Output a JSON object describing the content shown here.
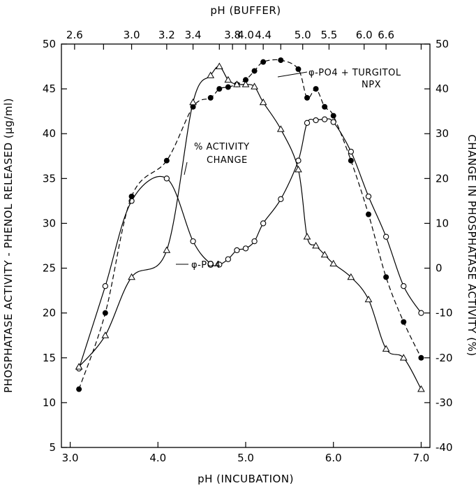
{
  "chart_data": {
    "type": "line",
    "xlabel": "pH (INCUBATION)",
    "x2label": "pH (BUFFER)",
    "ylabel": "PHOSPHATASE ACTIVITY - PHENOL RELEASED (μg/ml)",
    "y2label": "CHANGE IN PHOSPHATASE ACTIVITY (%)",
    "xlim": [
      2.9,
      7.1
    ],
    "ylim": [
      5,
      50
    ],
    "y2lim": [
      -40,
      50
    ],
    "x_ticks": [
      3.0,
      4.0,
      5.0,
      6.0,
      7.0
    ],
    "x_tick_labels": [
      "3.0",
      "4.0",
      "5.0",
      "6.0",
      "7.0"
    ],
    "y_ticks": [
      5,
      10,
      15,
      20,
      25,
      30,
      35,
      40,
      45,
      50
    ],
    "y_tick_labels": [
      "5",
      "10",
      "15",
      "20",
      "25",
      "30",
      "35",
      "40",
      "45",
      "50"
    ],
    "y2_ticks": [
      -40,
      -30,
      -20,
      -10,
      0,
      10,
      20,
      30,
      40,
      50
    ],
    "y2_tick_labels": [
      "-40",
      "-30",
      "-20",
      "-10",
      "0",
      "10",
      "20",
      "30",
      "40",
      "50"
    ],
    "x2_ticks": [
      3.05,
      3.38,
      3.7,
      4.1,
      4.4,
      4.7,
      4.85,
      5.0,
      5.2,
      5.4,
      5.65,
      5.95,
      6.35,
      6.6,
      7.0
    ],
    "x2_tick_labels": [
      {
        "x": 3.05,
        "label": "2.6"
      },
      {
        "x": 3.7,
        "label": "3.0"
      },
      {
        "x": 4.1,
        "label": "3.2"
      },
      {
        "x": 4.4,
        "label": "3.4"
      },
      {
        "x": 4.85,
        "label": "3.8"
      },
      {
        "x": 5.0,
        "label": "4.0"
      },
      {
        "x": 5.2,
        "label": "4.4"
      },
      {
        "x": 5.65,
        "label": "5.0"
      },
      {
        "x": 5.95,
        "label": "5.5"
      },
      {
        "x": 6.35,
        "label": "6.0"
      },
      {
        "x": 6.6,
        "label": "6.6"
      }
    ],
    "series": [
      {
        "name": "φ-PO4",
        "label_lines": [
          "φ-PO4"
        ],
        "axis": "left",
        "marker": "open-circle",
        "line": "solid",
        "x": [
          3.1,
          3.4,
          3.7,
          4.1,
          4.4,
          4.6,
          4.7,
          4.8,
          4.9,
          5.0,
          5.1,
          5.2,
          5.4,
          5.6,
          5.7,
          5.8,
          5.9,
          6.0,
          6.2,
          6.4,
          6.6,
          6.8,
          7.0
        ],
        "values": [
          13.8,
          23.0,
          32.5,
          35.0,
          28.0,
          25.5,
          25.4,
          26.0,
          27.0,
          27.2,
          28.0,
          30.0,
          32.7,
          37.0,
          41.2,
          41.5,
          41.6,
          41.3,
          38.0,
          33.0,
          28.5,
          23.0,
          20.0
        ]
      },
      {
        "name": "φ-PO4 + TURGITOL NPX",
        "label_lines": [
          "φ-PO4 + TURGITOL",
          "NPX"
        ],
        "axis": "left",
        "marker": "filled-circle",
        "line": "dashed",
        "x": [
          3.1,
          3.4,
          3.7,
          4.1,
          4.4,
          4.6,
          4.7,
          4.8,
          4.9,
          5.0,
          5.1,
          5.2,
          5.4,
          5.6,
          5.7,
          5.8,
          5.9,
          6.0,
          6.2,
          6.4,
          6.6,
          6.8,
          7.0
        ],
        "values": [
          11.5,
          20.0,
          33.0,
          37.0,
          43.0,
          44.0,
          45.0,
          45.2,
          45.5,
          46.0,
          47.0,
          48.0,
          48.2,
          47.2,
          44.0,
          45.0,
          43.0,
          42.0,
          37.0,
          31.0,
          24.0,
          19.0,
          15.0
        ]
      },
      {
        "name": "% ACTIVITY CHANGE",
        "label_lines": [
          "% ACTIVITY",
          "CHANGE"
        ],
        "axis": "right",
        "marker": "open-triangle",
        "line": "solid",
        "x": [
          3.1,
          3.4,
          3.7,
          4.1,
          4.4,
          4.6,
          4.7,
          4.8,
          4.9,
          5.0,
          5.1,
          5.2,
          5.4,
          5.6,
          5.7,
          5.8,
          5.9,
          6.0,
          6.2,
          6.4,
          6.6,
          6.8,
          7.0
        ],
        "values": [
          -22.0,
          -15.0,
          -2.0,
          4.0,
          37.0,
          43.0,
          45.0,
          42.0,
          41.0,
          41.0,
          40.5,
          37.0,
          31.0,
          22.0,
          7.0,
          5.0,
          3.0,
          1.0,
          -2.0,
          -7.0,
          -18.0,
          -20.0,
          -27.0
        ]
      }
    ],
    "grid": false
  }
}
